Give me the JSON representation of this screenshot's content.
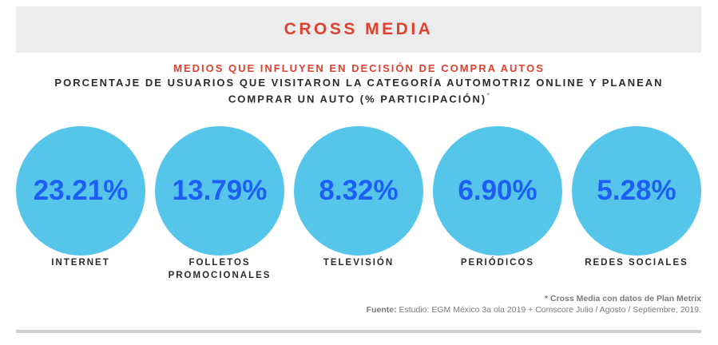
{
  "header": {
    "title": "CROSS MEDIA"
  },
  "subtitle": "MEDIOS QUE INFLUYEN EN DECISIÓN DE COMPRA AUTOS",
  "question": {
    "line1": "PORCENTAJE DE USUARIOS QUE VISITARON LA CATEGORÍA AUTOMOTRIZ ONLINE Y PLANEAN",
    "line2": "COMPRAR UN AUTO (% PARTICIPACIÓN)",
    "asterisk": "*"
  },
  "chart_data": {
    "type": "bubble",
    "unit": "%",
    "categories": [
      "INTERNET",
      "FOLLETOS PROMOCIONALES",
      "TELEVISIÓN",
      "PERIÓDICOS",
      "REDES SOCIALES"
    ],
    "values": [
      23.21,
      13.79,
      8.32,
      6.9,
      5.28
    ],
    "value_labels": [
      "23.21%",
      "13.79%",
      "8.32%",
      "6.90%",
      "5.28%"
    ],
    "category_label_lines": [
      [
        "INTERNET"
      ],
      [
        "FOLLETOS",
        "PROMOCIONALES"
      ],
      [
        "TELEVISIÓN"
      ],
      [
        "PERIÓDICOS"
      ],
      [
        "REDES SOCIALES"
      ]
    ]
  },
  "footnote": {
    "note": "* Cross Media con datos de Plan Metrix",
    "source_label": "Fuente:",
    "source_text": "Estudio: EGM México 3a ola 2019 + Comscore Julio / Agosto / Septiembre, 2019."
  },
  "colors": {
    "accent_red": "#e0412f",
    "circle_fill": "#55c6e9",
    "value_text": "#1d5ff5",
    "header_band": "#ececed",
    "text_dark": "#2b2b2b"
  }
}
